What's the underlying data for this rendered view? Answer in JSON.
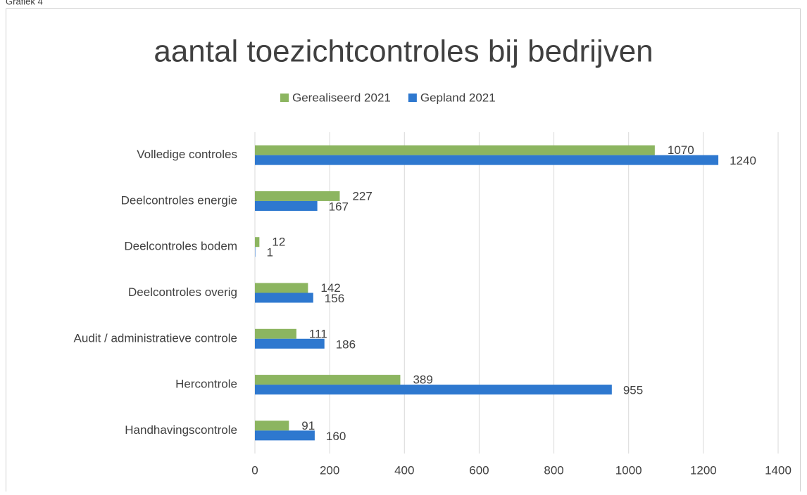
{
  "caption": "Grafiek 4",
  "chart_data": {
    "type": "hbar",
    "title": "aantal toezichtcontroles bij bedrijven",
    "categories": [
      "Volledige controles",
      "Deelcontroles energie",
      "Deelcontroles bodem",
      "Deelcontroles overig",
      "Audit / administratieve controle",
      "Hercontrole",
      "Handhavingscontrole"
    ],
    "series": [
      {
        "name": "Gerealiseerd 2021",
        "color": "#8cb560",
        "values": [
          1070,
          227,
          12,
          142,
          111,
          389,
          91
        ]
      },
      {
        "name": "Gepland 2021",
        "color": "#2e78cf",
        "values": [
          1240,
          167,
          1,
          156,
          186,
          955,
          160
        ]
      }
    ],
    "xlim": [
      0,
      1400
    ],
    "xticks": [
      0,
      200,
      400,
      600,
      800,
      1000,
      1200,
      1400
    ],
    "grid": true,
    "legend": "top"
  }
}
